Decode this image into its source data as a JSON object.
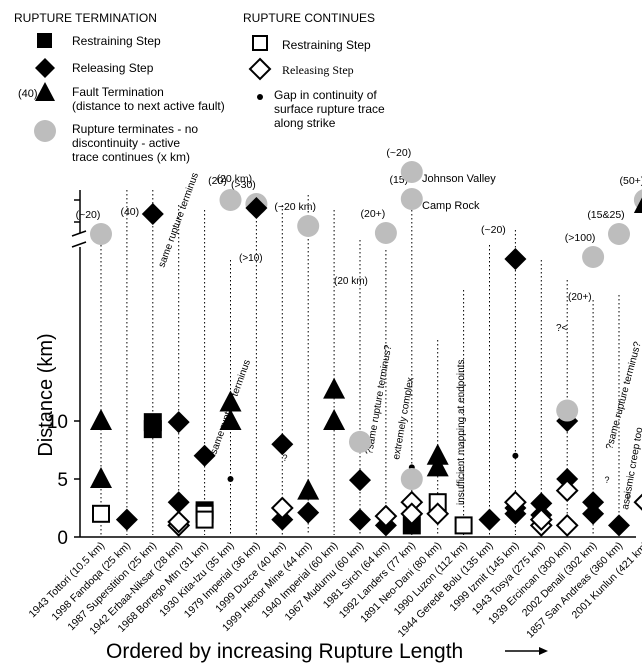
{
  "legend": {
    "termination_title": "RUPTURE TERMINATION",
    "continues_title": "RUPTURE CONTINUES",
    "items": {
      "restraining_filled": "Restraining Step",
      "releasing_filled": "Releasing Step",
      "fault_termination_prefix": "(40)",
      "fault_termination_line1": "Fault Termination",
      "fault_termination_line2": "(distance to next active fault)",
      "gray_line1": "Rupture terminates - no",
      "gray_line2": "discontinuity - active",
      "gray_line3": "trace continues (x km)",
      "restraining_open": "Restraining Step",
      "releasing_open": "Releasing Step",
      "gap_line1": "Gap in continuity of",
      "gap_line2": "surface rupture trace",
      "gap_line3": "along strike"
    }
  },
  "colors": {
    "gray": "#bdbdbd",
    "black": "#000000"
  },
  "chart_data": {
    "type": "scatter",
    "ylabel": "Distance (km)",
    "xlabel": "Ordered by increasing Rupture Length",
    "ylim": [
      0,
      12
    ],
    "yticks": [
      0,
      5,
      10
    ],
    "axis_break_label": "//",
    "categories": [
      "1943 Tottori (10.5 km)",
      "1998 Fandoqa (25 km)",
      "1987 Superstition (25 km)",
      "1942 Erbaa-Niksar (28 km)",
      "1968 Borrego Mtn (31 km)",
      "1930 Kita-Izu (35 km)",
      "1979 Imperial (36 km)",
      "1999 Duzce (40 km)",
      "1999 Hector Mine (44 km)",
      "1940 Imperial (60 km)",
      "1967 Mudurnu (60 km)",
      "1981 Sirch (64 km)",
      "1992 Landers (77 km)",
      "1891 Neo-Dani (80 km)",
      "1990 Luzon (112 km)",
      "1944 Gerede Bolu (135 km)",
      "1999 Izmit (145 km)",
      "1943 Tosya (275 km)",
      "1939 Ercincan (300 km)",
      "2002 Denali (302 km)",
      "1857 San Andreas (360 km)",
      "2001 Kunlun (421 km)"
    ],
    "series": [
      {
        "name": "Restraining Step (termination)",
        "marker": "filled-square",
        "points": [
          [
            2,
            9.3
          ],
          [
            2,
            9.9
          ],
          [
            4,
            2.3
          ],
          [
            12,
            1.0
          ]
        ]
      },
      {
        "name": "Releasing Step (termination)",
        "marker": "filled-diamond",
        "points": [
          [
            1,
            1.5
          ],
          [
            3,
            9.9
          ],
          [
            3,
            3.0
          ],
          [
            4,
            7.0
          ],
          [
            7,
            8.0
          ],
          [
            7,
            1.5
          ],
          [
            8,
            2.1
          ],
          [
            10,
            4.9
          ],
          [
            10,
            1.5
          ],
          [
            11,
            1.0
          ],
          [
            15,
            1.5
          ],
          [
            16,
            2.5
          ],
          [
            16,
            2.0
          ],
          [
            17,
            2.9
          ],
          [
            17,
            1.9
          ],
          [
            18,
            10.0
          ],
          [
            18,
            5.0
          ],
          [
            19,
            3.0
          ],
          [
            19,
            2.0
          ],
          [
            20,
            1.0
          ]
        ]
      },
      {
        "name": "Fault Termination",
        "marker": "filled-triangle",
        "points": [
          [
            0,
            10.0
          ],
          [
            0,
            5.0
          ],
          [
            5,
            11.6
          ],
          [
            5,
            10.0
          ],
          [
            8,
            4.0
          ],
          [
            9,
            12.7
          ],
          [
            9,
            10.0
          ],
          [
            13,
            7.0
          ],
          [
            13,
            6.0
          ]
        ]
      },
      {
        "name": "Restraining Step (continues)",
        "marker": "open-square",
        "points": [
          [
            0,
            2.0
          ],
          [
            4,
            2.0
          ],
          [
            4,
            1.5
          ],
          [
            13,
            3.0
          ],
          [
            14,
            1.0
          ]
        ]
      },
      {
        "name": "Releasing Step (continues)",
        "marker": "open-diamond",
        "points": [
          [
            3,
            1.0
          ],
          [
            3,
            1.3
          ],
          [
            7,
            2.5
          ],
          [
            11,
            1.8
          ],
          [
            12,
            3.0
          ],
          [
            12,
            2.0
          ],
          [
            13,
            2.0
          ],
          [
            16,
            3.0
          ],
          [
            17,
            1.0
          ],
          [
            17,
            1.5
          ],
          [
            18,
            4.0
          ],
          [
            18,
            1.0
          ],
          [
            21,
            3.0
          ]
        ]
      },
      {
        "name": "Gap in continuity",
        "marker": "dot",
        "points": [
          [
            5,
            5.0
          ],
          [
            12,
            6.0
          ],
          [
            16,
            7.0
          ]
        ]
      },
      {
        "name": "Rupture terminates - active trace continues (x km)",
        "marker": "gray-circle",
        "points": [
          [
            10,
            8.2
          ],
          [
            12,
            5.0
          ],
          [
            18,
            10.9
          ]
        ]
      }
    ],
    "upper_segment": {
      "gray_circles": [
        {
          "cat": 0,
          "label": "(~20)"
        },
        {
          "cat": 5,
          "label": "(20)"
        },
        {
          "cat": 6,
          "label": "(>30)"
        },
        {
          "cat": 8,
          "label": "(~20 km)"
        },
        {
          "cat": 11,
          "label": "(20+)"
        },
        {
          "cat": 12,
          "label": "(~20)"
        },
        {
          "cat": 12,
          "label": "(15)"
        },
        {
          "cat": 19,
          "label": "(>100)"
        },
        {
          "cat": 20,
          "label": "(15&25)"
        },
        {
          "cat": 21,
          "label": "(50+)"
        }
      ],
      "filled_squares": [
        {
          "cat": 2,
          "label": "(40)"
        }
      ],
      "filled_diamonds": [
        {
          "cat": 6,
          "label": "(20 km)"
        },
        {
          "cat": 16,
          "label": "(~20)"
        }
      ],
      "filled_triangles": [
        {
          "cat": 21,
          "label": ""
        }
      ]
    },
    "annotations": [
      {
        "text": "same rupture terminus",
        "cat": 2
      },
      {
        "text": "same rupture terminus",
        "cat": 4
      },
      {
        "text": "(>10)",
        "cat": 5
      },
      {
        "text": "(20 km)",
        "cat": 9
      },
      {
        "text": "?same rupture terminus?",
        "cat": 10
      },
      {
        "text": "extremely complex",
        "cat": 11
      },
      {
        "text": "Johnson Valley",
        "cat": 12
      },
      {
        "text": "Camp Rock",
        "cat": 12
      },
      {
        "text": "insufficient mapping at endpoints",
        "cat": 14
      },
      {
        "text": "(20+)",
        "cat": 18
      },
      {
        "text": "?<",
        "cat": 18
      },
      {
        "text": "?same rupture terminus?",
        "cat": 19
      },
      {
        "text": "aseismic creep too",
        "cat": 20
      },
      {
        "text": "?",
        "cat": 7
      },
      {
        "text": "?",
        "cat": 19
      },
      {
        "text": "?",
        "cat": 21
      }
    ]
  }
}
